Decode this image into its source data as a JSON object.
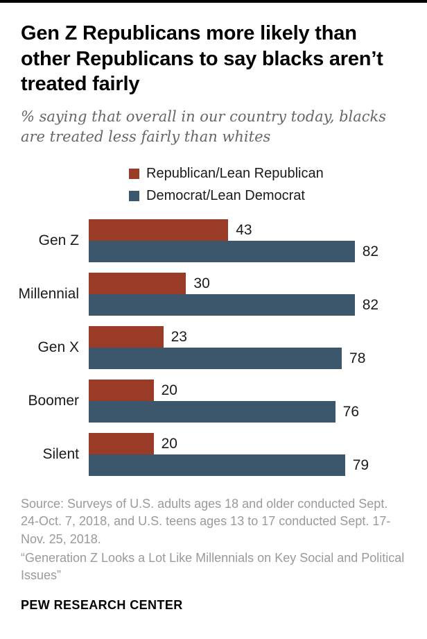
{
  "header": {
    "title": "Gen Z Republicans more likely than other Republicans to say blacks aren’t treated fairly",
    "subtitle": "% saying that overall in our country today, blacks are treated less fairly than whites"
  },
  "colors": {
    "republican": "#9a3b27",
    "democrat": "#3c566b"
  },
  "chart_data": {
    "type": "bar",
    "orientation": "horizontal",
    "title": "Gen Z Republicans more likely than other Republicans to say blacks aren’t treated fairly",
    "subtitle": "% saying that overall in our country today, blacks are treated less fairly than whites",
    "categories": [
      "Gen Z",
      "Millennial",
      "Gen X",
      "Boomer",
      "Silent"
    ],
    "series": [
      {
        "name": "Republican/Lean Republican",
        "color": "#9a3b27",
        "values": [
          43,
          30,
          23,
          20,
          20
        ]
      },
      {
        "name": "Democrat/Lean Democrat",
        "color": "#3c566b",
        "values": [
          82,
          82,
          78,
          76,
          79
        ]
      }
    ],
    "xlim": [
      0,
      100
    ],
    "value_labels": true,
    "legend_position": "top",
    "grid": false
  },
  "footer": {
    "source": "Source: Surveys of U.S. adults ages 18 and older conducted Sept. 24-Oct. 7, 2018, and U.S. teens ages 13 to 17 conducted Sept. 17-Nov. 25, 2018.",
    "report": "“Generation Z Looks a Lot Like Millennials on Key Social and Political Issues”",
    "brand": "PEW RESEARCH CENTER"
  }
}
